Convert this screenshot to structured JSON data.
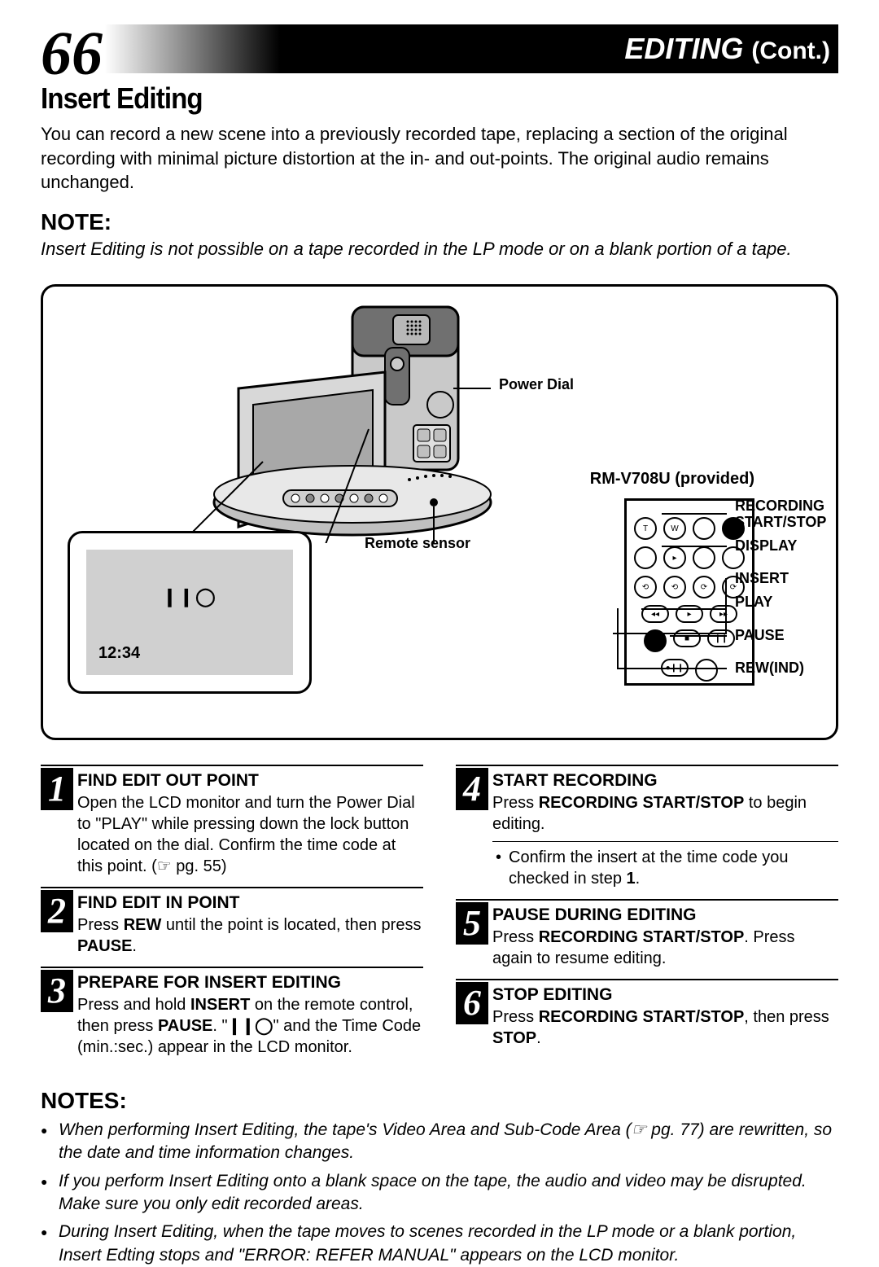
{
  "page_number": "66",
  "header": {
    "title": "EDITING",
    "cont": "(Cont.)"
  },
  "section_title": "Insert Editing",
  "intro": "You can record a new scene into a previously recorded tape, replacing a section of the original recording with minimal picture distortion at the in- and out-points. The original audio remains unchanged.",
  "note_head": "NOTE:",
  "note_text": "Insert Editing is not possible on a tape recorded in the LP mode or on a blank portion of a tape.",
  "diagram": {
    "labels": {
      "power_dial": "Power Dial",
      "remote_sensor": "Remote sensor",
      "remote_model": "RM-V708U (provided)",
      "recording": "RECORDING",
      "start_stop": "START/STOP",
      "display": "DISPLAY",
      "insert": "INSERT",
      "play": "PLAY",
      "pause": "PAUSE",
      "rewind": "REW(IND)"
    },
    "lcd": {
      "icon": "❙❙◯",
      "time": "12:34"
    }
  },
  "steps_left": [
    {
      "num": "1",
      "title": "FIND EDIT OUT POINT",
      "body": "Open the LCD monitor and turn the Power Dial to \"PLAY\" while pressing down the lock button located on the dial. Confirm the time code at this point. (☞ pg. 55)"
    },
    {
      "num": "2",
      "title": "FIND EDIT IN POINT",
      "body_html": "Press <b>REW</b> until the point is located, then press <b>PAUSE</b>."
    },
    {
      "num": "3",
      "title": "PREPARE FOR INSERT EDITING",
      "body_html": "Press and hold <b>INSERT</b> on the remote control, then press <b>PAUSE</b>. \"<b>❙❙◯</b>\" and the Time Code (min.:sec.) appear in the LCD monitor."
    }
  ],
  "steps_right": [
    {
      "num": "4",
      "title": "START RECORDING",
      "body_html": "Press <b>RECORDING START/STOP</b> to begin editing.",
      "bullet": "Confirm the insert at the time code you checked in step <b>1</b>."
    },
    {
      "num": "5",
      "title": "PAUSE DURING EDITING",
      "body_html": "Press <b>RECORDING START/STOP</b>. Press again to resume editing."
    },
    {
      "num": "6",
      "title": "STOP EDITING",
      "body_html": "Press <b>RECORDING START/STOP</b>, then press <b>STOP</b>."
    }
  ],
  "notes_head": "NOTES:",
  "notes": [
    "When performing Insert Editing, the tape's Video Area and Sub-Code Area (☞ pg. 77) are rewritten, so the date and time information changes.",
    "If you perform Insert Editing onto a blank space on the tape, the audio and video may be disrupted. Make sure you only edit recorded areas.",
    "During Insert Editing, when the tape moves to scenes recorded in the LP mode or a blank portion, Insert Edting stops and \"ERROR: REFER MANUAL\" appears on the LCD monitor."
  ]
}
